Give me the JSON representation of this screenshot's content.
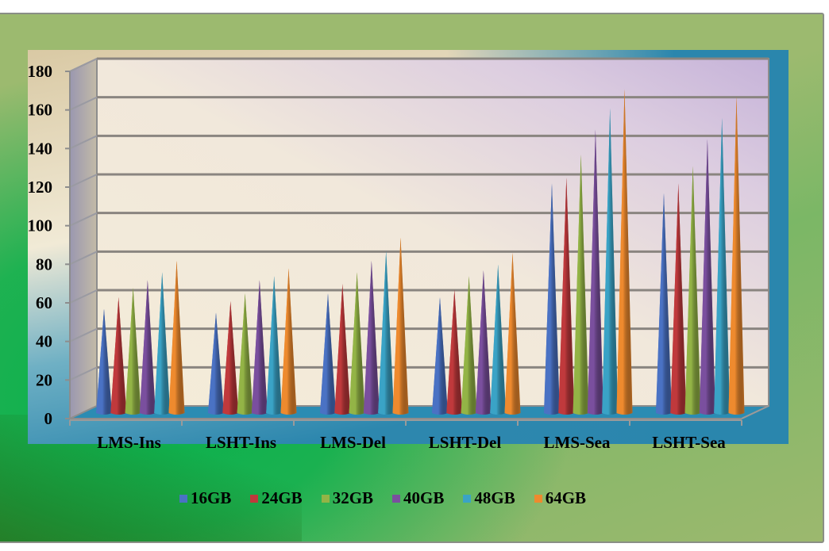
{
  "chart_data": {
    "type": "bar",
    "subtype": "3d-cone-clustered",
    "title": "",
    "xlabel": "",
    "ylabel": "",
    "ylim": [
      0,
      180
    ],
    "yticks": [
      0,
      20,
      40,
      60,
      80,
      100,
      120,
      140,
      160,
      180
    ],
    "grid": true,
    "legend_position": "bottom",
    "categories": [
      "LMS-Ins",
      "LSHT-Ins",
      "LMS-Del",
      "LSHT-Del",
      "LMS-Sea",
      "LSHT-Sea"
    ],
    "series": [
      {
        "name": "16GB",
        "color": "#4a72c4",
        "values": [
          54,
          52,
          62,
          60,
          119,
          114
        ]
      },
      {
        "name": "24GB",
        "color": "#c0393c",
        "values": [
          60,
          58,
          67,
          64,
          122,
          119
        ]
      },
      {
        "name": "32GB",
        "color": "#93b446",
        "values": [
          65,
          62,
          73,
          71,
          134,
          128
        ]
      },
      {
        "name": "40GB",
        "color": "#7a4f9e",
        "values": [
          69,
          69,
          79,
          74,
          147,
          142
        ]
      },
      {
        "name": "48GB",
        "color": "#3aa3c6",
        "values": [
          73,
          71,
          84,
          77,
          158,
          153
        ]
      },
      {
        "name": "64GB",
        "color": "#ee8a2e",
        "values": [
          79,
          75,
          91,
          83,
          168,
          164
        ]
      }
    ]
  },
  "legend": {
    "items": [
      {
        "label": "16GB",
        "color": "#4a72c4"
      },
      {
        "label": "24GB",
        "color": "#c0393c"
      },
      {
        "label": "32GB",
        "color": "#93b446"
      },
      {
        "label": "40GB",
        "color": "#7a4f9e"
      },
      {
        "label": "48GB",
        "color": "#3aa3c6"
      },
      {
        "label": "64GB",
        "color": "#ee8a2e"
      }
    ]
  }
}
